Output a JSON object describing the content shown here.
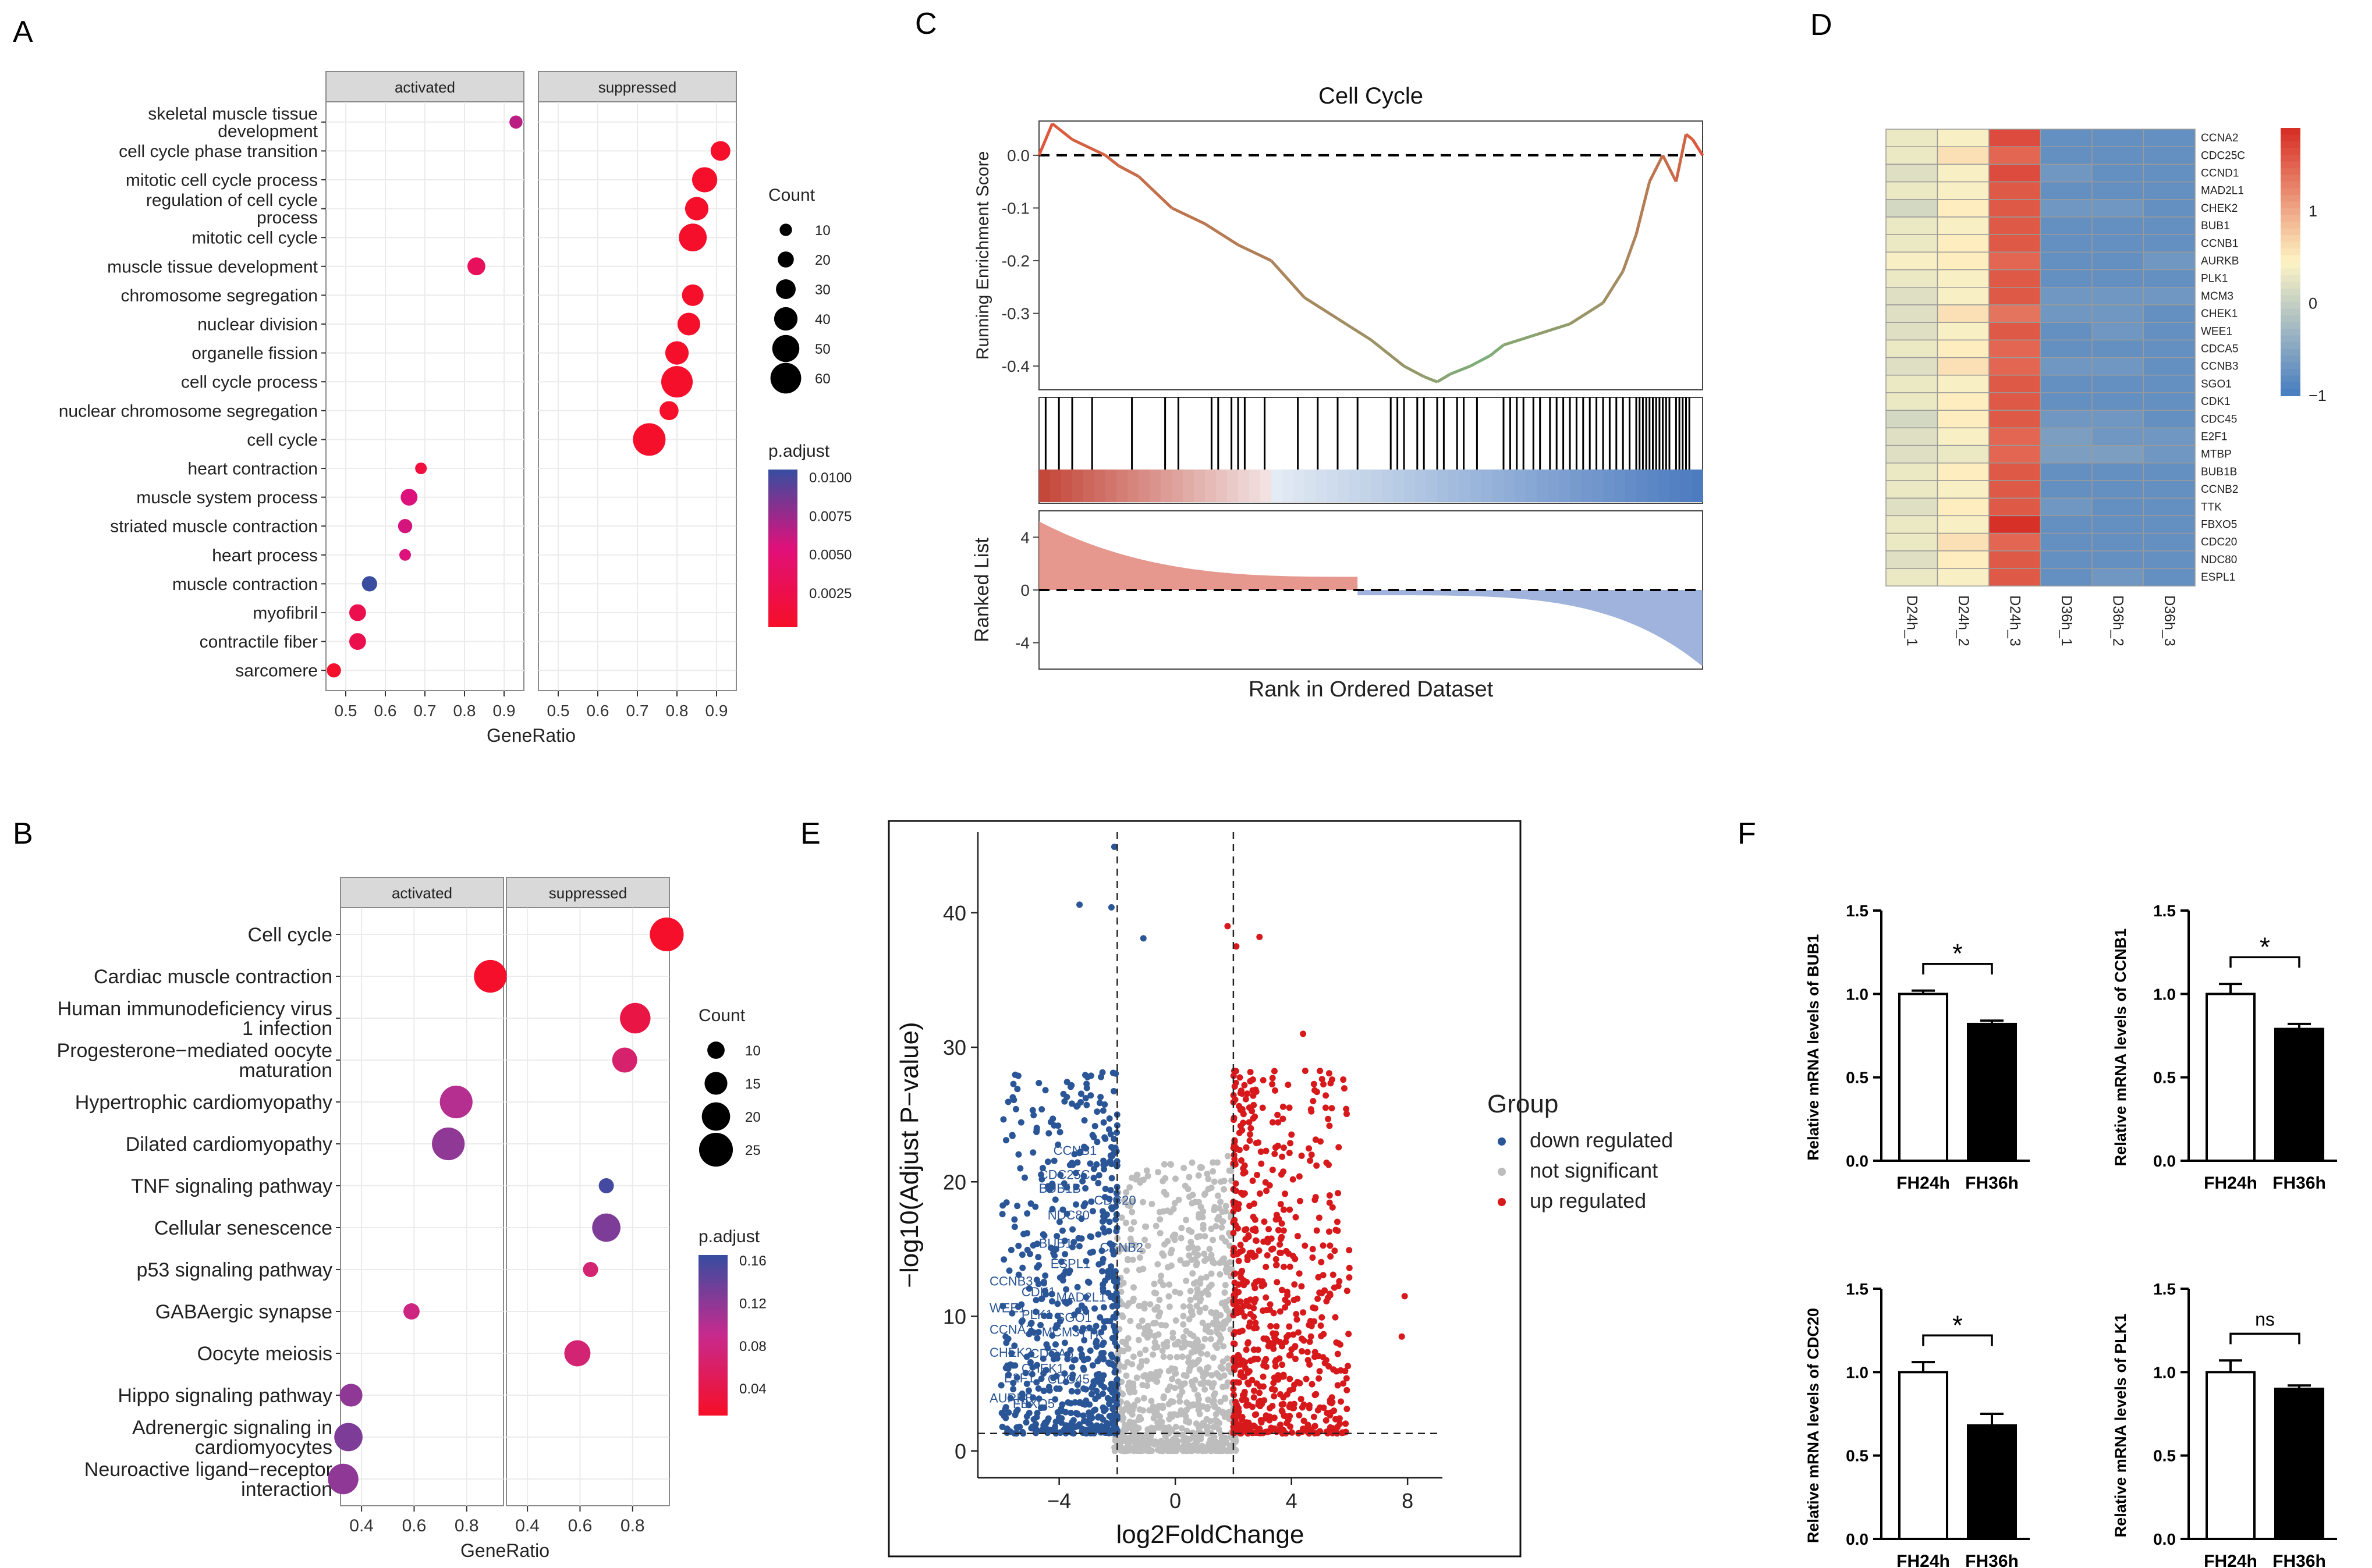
{
  "chart_data": [
    {
      "panel": "A",
      "type": "scatter",
      "facets": [
        "activated",
        "suppressed"
      ],
      "xlabel": "GeneRatio",
      "xticks": [
        "0.5",
        "0.6",
        "0.7",
        "0.8",
        "0.9"
      ],
      "xlim": [
        0.45,
        0.95
      ],
      "terms": [
        "skeletal muscle tissue development",
        "cell cycle phase transition",
        "mitotic cell cycle process",
        "regulation of cell cycle process",
        "mitotic cell cycle",
        "muscle tissue development",
        "chromosome segregation",
        "nuclear division",
        "organelle fission",
        "cell cycle process",
        "nuclear chromosome segregation",
        "cell cycle",
        "heart contraction",
        "muscle system process",
        "striated muscle contraction",
        "heart process",
        "muscle contraction",
        "myofibril",
        "contractile fiber",
        "sarcomere"
      ],
      "points": [
        {
          "term": "skeletal muscle tissue development",
          "facet": "activated",
          "ratio": 0.93,
          "count": 12,
          "padj": 0.0065
        },
        {
          "term": "cell cycle phase transition",
          "facet": "suppressed",
          "ratio": 0.91,
          "count": 30,
          "padj": 0.0003
        },
        {
          "term": "mitotic cell cycle process",
          "facet": "suppressed",
          "ratio": 0.87,
          "count": 45,
          "padj": 0.0003
        },
        {
          "term": "regulation of cell cycle process",
          "facet": "suppressed",
          "ratio": 0.85,
          "count": 40,
          "padj": 0.0003
        },
        {
          "term": "mitotic cell cycle",
          "facet": "suppressed",
          "ratio": 0.84,
          "count": 52,
          "padj": 0.0003
        },
        {
          "term": "muscle tissue development",
          "facet": "activated",
          "ratio": 0.83,
          "count": 25,
          "padj": 0.0035
        },
        {
          "term": "chromosome segregation",
          "facet": "suppressed",
          "ratio": 0.84,
          "count": 35,
          "padj": 0.0003
        },
        {
          "term": "nuclear division",
          "facet": "suppressed",
          "ratio": 0.83,
          "count": 38,
          "padj": 0.0003
        },
        {
          "term": "organelle fission",
          "facet": "suppressed",
          "ratio": 0.8,
          "count": 40,
          "padj": 0.0003
        },
        {
          "term": "cell cycle process",
          "facet": "suppressed",
          "ratio": 0.8,
          "count": 62,
          "padj": 0.0003
        },
        {
          "term": "nuclear chromosome segregation",
          "facet": "suppressed",
          "ratio": 0.78,
          "count": 28,
          "padj": 0.0003
        },
        {
          "term": "cell cycle",
          "facet": "suppressed",
          "ratio": 0.73,
          "count": 65,
          "padj": 0.0003
        },
        {
          "term": "heart contraction",
          "facet": "activated",
          "ratio": 0.69,
          "count": 8,
          "padj": 0.0015
        },
        {
          "term": "muscle system process",
          "facet": "activated",
          "ratio": 0.66,
          "count": 22,
          "padj": 0.0055
        },
        {
          "term": "striated muscle contraction",
          "facet": "activated",
          "ratio": 0.65,
          "count": 15,
          "padj": 0.0058
        },
        {
          "term": "heart process",
          "facet": "activated",
          "ratio": 0.65,
          "count": 8,
          "padj": 0.0055
        },
        {
          "term": "muscle contraction",
          "facet": "activated",
          "ratio": 0.56,
          "count": 18,
          "padj": 0.0105
        },
        {
          "term": "myofibril",
          "facet": "activated",
          "ratio": 0.53,
          "count": 22,
          "padj": 0.0025
        },
        {
          "term": "contractile fiber",
          "facet": "activated",
          "ratio": 0.53,
          "count": 22,
          "padj": 0.0025
        },
        {
          "term": "sarcomere",
          "facet": "activated",
          "ratio": 0.47,
          "count": 15,
          "padj": 0.0005
        }
      ],
      "size_legend": {
        "title": "Count",
        "labels": [
          "10",
          "20",
          "30",
          "40",
          "50",
          "60"
        ]
      },
      "color_legend": {
        "title": "p.adjust",
        "labels": [
          "0.0100",
          "0.0075",
          "0.0050",
          "0.0025"
        ],
        "high_color": "#3a4ca0",
        "mid_color": "#e0107a",
        "low_color": "#f50f2a"
      }
    },
    {
      "panel": "B",
      "type": "scatter",
      "facets": [
        "activated",
        "suppressed"
      ],
      "xlabel": "GeneRatio",
      "xticks": [
        "0.4",
        "0.6",
        "0.8"
      ],
      "xlim": [
        0.32,
        0.94
      ],
      "terms": [
        "Cell cycle",
        "Cardiac muscle contraction",
        "Human immunodeficiency virus 1 infection",
        "Progesterone−mediated oocyte maturation",
        "Hypertrophic cardiomyopathy",
        "Dilated cardiomyopathy",
        "TNF signaling pathway",
        "Cellular senescence",
        "p53 signaling pathway",
        "GABAergic synapse",
        "Oocyte meiosis",
        "Hippo signaling pathway",
        "Adrenergic signaling in cardiomyocytes",
        "Neuroactive ligand−receptor interaction"
      ],
      "points": [
        {
          "term": "Cell cycle",
          "facet": "suppressed",
          "ratio": 0.93,
          "count": 25,
          "padj": 0.015
        },
        {
          "term": "Cardiac muscle contraction",
          "facet": "activated",
          "ratio": 0.89,
          "count": 24,
          "padj": 0.015
        },
        {
          "term": "Human immunodeficiency virus 1 infection",
          "facet": "suppressed",
          "ratio": 0.81,
          "count": 22,
          "padj": 0.035
        },
        {
          "term": "Progesterone−mediated oocyte maturation",
          "facet": "suppressed",
          "ratio": 0.77,
          "count": 17,
          "padj": 0.065
        },
        {
          "term": "Hypertrophic cardiomyopathy",
          "facet": "activated",
          "ratio": 0.76,
          "count": 24,
          "padj": 0.1
        },
        {
          "term": "Dilated cardiomyopathy",
          "facet": "activated",
          "ratio": 0.73,
          "count": 24,
          "padj": 0.12
        },
        {
          "term": "TNF signaling pathway",
          "facet": "suppressed",
          "ratio": 0.7,
          "count": 8,
          "padj": 0.16
        },
        {
          "term": "Cellular senescence",
          "facet": "suppressed",
          "ratio": 0.7,
          "count": 20,
          "padj": 0.13
        },
        {
          "term": "p53 signaling pathway",
          "facet": "suppressed",
          "ratio": 0.64,
          "count": 8,
          "padj": 0.07
        },
        {
          "term": "GABAergic synapse",
          "facet": "activated",
          "ratio": 0.59,
          "count": 9,
          "padj": 0.08
        },
        {
          "term": "Oocyte meiosis",
          "facet": "suppressed",
          "ratio": 0.59,
          "count": 18,
          "padj": 0.07
        },
        {
          "term": "Hippo signaling pathway",
          "facet": "activated",
          "ratio": 0.36,
          "count": 15,
          "padj": 0.12
        },
        {
          "term": "Adrenergic signaling in cardiomyocytes",
          "facet": "activated",
          "ratio": 0.35,
          "count": 20,
          "padj": 0.13
        },
        {
          "term": "Neuroactive ligand−receptor interaction",
          "facet": "activated",
          "ratio": 0.33,
          "count": 22,
          "padj": 0.12
        }
      ],
      "size_legend": {
        "title": "Count",
        "labels": [
          "10",
          "15",
          "20",
          "25"
        ]
      },
      "color_legend": {
        "title": "p.adjust",
        "labels": [
          "0.16",
          "0.12",
          "0.08",
          "0.04"
        ],
        "high_color": "#3a4ca0",
        "mid_color": "#c72a8e",
        "low_color": "#f50f2a"
      }
    },
    {
      "panel": "C",
      "type": "line",
      "title": "Cell Cycle",
      "ylabel_top": "Running Enrichment Score",
      "ylabel_bottom": "Ranked List",
      "xlabel": "Rank in Ordered Dataset",
      "yticks_top": [
        "0.0",
        "-0.1",
        "-0.2",
        "-0.3",
        "-0.4"
      ],
      "ylim_top": [
        -0.445,
        0.065
      ],
      "yticks_bottom": [
        "4",
        "0",
        "-4"
      ],
      "ylim_bottom": [
        -6,
        6
      ],
      "curve_x": [
        0,
        0.02,
        0.05,
        0.1,
        0.12,
        0.15,
        0.2,
        0.25,
        0.3,
        0.35,
        0.4,
        0.45,
        0.5,
        0.55,
        0.58,
        0.6,
        0.62,
        0.65,
        0.68,
        0.7,
        0.75,
        0.8,
        0.85,
        0.88,
        0.9,
        0.92,
        0.94,
        0.96,
        0.975,
        0.985,
        1.0
      ],
      "curve_y": [
        0.0,
        0.06,
        0.03,
        0.0,
        -0.02,
        -0.04,
        -0.1,
        -0.13,
        -0.17,
        -0.2,
        -0.27,
        -0.31,
        -0.35,
        -0.4,
        -0.42,
        -0.43,
        -0.415,
        -0.4,
        -0.38,
        -0.36,
        -0.34,
        -0.32,
        -0.28,
        -0.22,
        -0.15,
        -0.05,
        0.0,
        -0.05,
        0.04,
        0.03,
        0.0
      ],
      "hits": [
        0.01,
        0.03,
        0.05,
        0.08,
        0.14,
        0.19,
        0.21,
        0.26,
        0.27,
        0.29,
        0.3,
        0.31,
        0.34,
        0.39,
        0.42,
        0.45,
        0.48,
        0.53,
        0.54,
        0.55,
        0.57,
        0.58,
        0.6,
        0.61,
        0.63,
        0.64,
        0.66,
        0.7,
        0.71,
        0.72,
        0.73,
        0.745,
        0.755,
        0.77,
        0.78,
        0.79,
        0.8,
        0.81,
        0.82,
        0.83,
        0.84,
        0.85,
        0.86,
        0.87,
        0.88,
        0.89,
        0.9,
        0.905,
        0.91,
        0.915,
        0.92,
        0.925,
        0.93,
        0.935,
        0.94,
        0.945,
        0.95,
        0.96,
        0.965,
        0.97,
        0.975,
        0.98
      ]
    },
    {
      "panel": "D",
      "type": "heatmap",
      "columns": [
        "D24h_1",
        "D24h_2",
        "D24h_3",
        "D36h_1",
        "D36h_2",
        "D36h_3"
      ],
      "rows": [
        "CCNA2",
        "CDC25C",
        "CCND1",
        "MAD2L1",
        "CHEK2",
        "BUB1",
        "CCNB1",
        "AURKB",
        "PLK1",
        "MCM3",
        "CHEK1",
        "WEE1",
        "CDCA5",
        "CCNB3",
        "SGO1",
        "CDK1",
        "CDC45",
        "E2F1",
        "MTBP",
        "BUB1B",
        "CCNB2",
        "TTK",
        "FBXO5",
        "CDC20",
        "NDC80",
        "ESPL1"
      ],
      "values": [
        [
          0.3,
          0.4,
          1.7,
          -0.8,
          -0.8,
          -0.8
        ],
        [
          0.3,
          0.6,
          1.5,
          -0.8,
          -0.8,
          -0.8
        ],
        [
          0.2,
          0.4,
          1.7,
          -0.7,
          -0.8,
          -0.8
        ],
        [
          0.3,
          0.4,
          1.6,
          -0.8,
          -0.8,
          -0.8
        ],
        [
          0.1,
          0.5,
          1.6,
          -0.7,
          -0.7,
          -0.8
        ],
        [
          0.3,
          0.4,
          1.6,
          -0.8,
          -0.8,
          -0.8
        ],
        [
          0.3,
          0.5,
          1.6,
          -0.8,
          -0.8,
          -0.8
        ],
        [
          0.4,
          0.5,
          1.5,
          -0.8,
          -0.8,
          -0.7
        ],
        [
          0.3,
          0.4,
          1.6,
          -0.8,
          -0.8,
          -0.8
        ],
        [
          0.2,
          0.4,
          1.6,
          -0.7,
          -0.7,
          -0.7
        ],
        [
          0.2,
          0.6,
          1.4,
          -0.7,
          -0.7,
          -0.8
        ],
        [
          0.2,
          0.4,
          1.6,
          -0.8,
          -0.7,
          -0.8
        ],
        [
          0.3,
          0.5,
          1.5,
          -0.8,
          -0.8,
          -0.8
        ],
        [
          0.2,
          0.6,
          1.5,
          -0.7,
          -0.7,
          -0.8
        ],
        [
          0.3,
          0.4,
          1.6,
          -0.8,
          -0.8,
          -0.8
        ],
        [
          0.3,
          0.5,
          1.6,
          -0.8,
          -0.8,
          -0.8
        ],
        [
          0.1,
          0.5,
          1.6,
          -0.7,
          -0.7,
          -0.8
        ],
        [
          0.2,
          0.4,
          1.5,
          -0.6,
          -0.7,
          -0.7
        ],
        [
          0.2,
          0.3,
          1.5,
          -0.6,
          -0.6,
          -0.7
        ],
        [
          0.3,
          0.5,
          1.6,
          -0.8,
          -0.8,
          -0.8
        ],
        [
          0.3,
          0.4,
          1.6,
          -0.8,
          -0.8,
          -0.8
        ],
        [
          0.2,
          0.5,
          1.6,
          -0.7,
          -0.8,
          -0.8
        ],
        [
          0.3,
          0.4,
          1.9,
          -0.8,
          -0.8,
          -0.8
        ],
        [
          0.3,
          0.6,
          1.5,
          -0.8,
          -0.8,
          -0.8
        ],
        [
          0.2,
          0.5,
          1.6,
          -0.8,
          -0.8,
          -0.8
        ],
        [
          0.3,
          0.4,
          1.6,
          -0.8,
          -0.7,
          -0.8
        ]
      ],
      "legend_ticks": [
        "1",
        "0",
        "−1"
      ],
      "low_color": "#4a7fc0",
      "mid_color": "#fef4c4",
      "high_color": "#d73027"
    },
    {
      "panel": "E",
      "type": "scatter",
      "xlabel": "log2FoldChange",
      "ylabel": "−log10(Adjust P−value)",
      "xticks": [
        "−4",
        "0",
        "4",
        "8"
      ],
      "yticks": [
        "0",
        "10",
        "20",
        "30",
        "40"
      ],
      "xlim": [
        -6.8,
        9.2
      ],
      "ylim": [
        -2,
        46
      ],
      "fc_threshold": [
        -2,
        2
      ],
      "p_threshold": 1.3,
      "legend_title": "Group",
      "groups": [
        {
          "name": "down regulated",
          "color": "#2a5596"
        },
        {
          "name": "not significant",
          "color": "#bdbdbd"
        },
        {
          "name": "up regulated",
          "color": "#d7191c"
        }
      ],
      "gene_labels": [
        "CCNB1",
        "CDC25C",
        "CDC20",
        "BUB1B",
        "NDC80",
        "BUB1",
        "CCNB2",
        "ESPL1",
        "CCNB3",
        "CDK1",
        "MAD2L1",
        "WEE1",
        "PLK1",
        "SGO1",
        "CCNA2",
        "MCM3",
        "TTK",
        "CHEK2",
        "CDCA5",
        "CHEK1",
        "E2F1",
        "CDC45",
        "AURKB",
        "FBXO5"
      ]
    },
    {
      "panel": "F",
      "type": "bar",
      "charts": [
        {
          "ylabel": "Relative mRNA levels of BUB1",
          "categories": [
            "FH24h",
            "FH36h"
          ],
          "values": [
            1.0,
            0.82
          ],
          "errors": [
            0.02,
            0.02
          ],
          "sig": "*",
          "ylim": [
            0,
            1.5
          ]
        },
        {
          "ylabel": "Relative mRNA levels of CCNB1",
          "categories": [
            "FH24h",
            "FH36h"
          ],
          "values": [
            1.0,
            0.79
          ],
          "errors": [
            0.06,
            0.03
          ],
          "sig": "*",
          "ylim": [
            0,
            1.5
          ]
        },
        {
          "ylabel": "Relative mRNA levels of CDC20",
          "categories": [
            "FH24h",
            "FH36h"
          ],
          "values": [
            1.0,
            0.68
          ],
          "errors": [
            0.06,
            0.07
          ],
          "sig": "*",
          "ylim": [
            0,
            1.5
          ]
        },
        {
          "ylabel": "Relative mRNA levels of PLK1",
          "categories": [
            "FH24h",
            "FH36h"
          ],
          "values": [
            1.0,
            0.9
          ],
          "errors": [
            0.07,
            0.02
          ],
          "sig": "ns",
          "ylim": [
            0,
            1.5
          ]
        }
      ],
      "yticks": [
        "0.0",
        "0.5",
        "1.0",
        "1.5"
      ]
    }
  ],
  "panel_labels": [
    "A",
    "B",
    "C",
    "D",
    "E",
    "F"
  ]
}
